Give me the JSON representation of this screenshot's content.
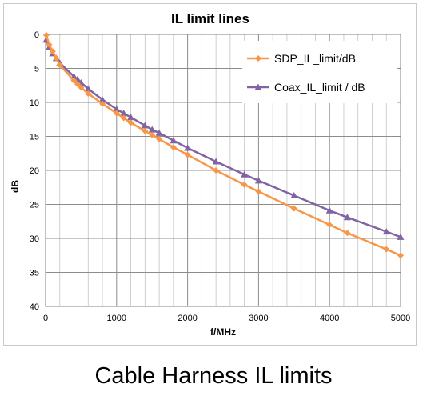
{
  "caption": "Cable Harness IL limits",
  "colors": {
    "sdp": "#F79646",
    "coax": "#8064A2",
    "grid": "#a6a6a6",
    "axis": "#808080",
    "text": "#000000"
  },
  "chart_data": {
    "type": "line",
    "title": "IL limit lines",
    "xlabel": "f/MHz",
    "ylabel": "dB",
    "xlim": [
      0,
      5000
    ],
    "ylim": [
      0,
      40
    ],
    "y_inverted": true,
    "x_ticks": [
      "0",
      "1000",
      "2000",
      "3000",
      "4000",
      "5000"
    ],
    "y_ticks": [
      "0",
      "5",
      "10",
      "15",
      "20",
      "25",
      "30",
      "35",
      "40"
    ],
    "grid": true,
    "legend_position": "top-right",
    "series": [
      {
        "name": "SDP_IL_limit/dB",
        "color": "#F79646",
        "marker": "diamond",
        "x": [
          10,
          50,
          100,
          150,
          200,
          400,
          450,
          500,
          600,
          800,
          1000,
          1100,
          1200,
          1400,
          1500,
          1600,
          1800,
          2000,
          2400,
          2800,
          3000,
          3500,
          4000,
          4250,
          4800,
          5000
        ],
        "y": [
          0.1,
          1.5,
          2.5,
          3.5,
          4.5,
          6.8,
          7.3,
          7.8,
          8.7,
          10.2,
          11.6,
          12.3,
          13.0,
          14.2,
          14.8,
          15.4,
          16.6,
          17.7,
          20.0,
          22.1,
          23.1,
          25.6,
          28.0,
          29.2,
          31.6,
          32.5
        ]
      },
      {
        "name": "Coax_IL_limit / dB",
        "color": "#8064A2",
        "marker": "triangle",
        "x": [
          10,
          50,
          100,
          150,
          200,
          400,
          450,
          500,
          600,
          800,
          1000,
          1100,
          1200,
          1400,
          1500,
          1600,
          1800,
          2000,
          2400,
          2800,
          3000,
          3500,
          4000,
          4250,
          4800,
          5000
        ],
        "y": [
          0.8,
          1.9,
          2.8,
          3.5,
          4.2,
          6.2,
          6.6,
          7.1,
          8.0,
          9.6,
          11.0,
          11.6,
          12.2,
          13.4,
          14.0,
          14.5,
          15.6,
          16.7,
          18.7,
          20.6,
          21.5,
          23.7,
          25.9,
          26.9,
          29.0,
          29.8
        ]
      }
    ]
  }
}
